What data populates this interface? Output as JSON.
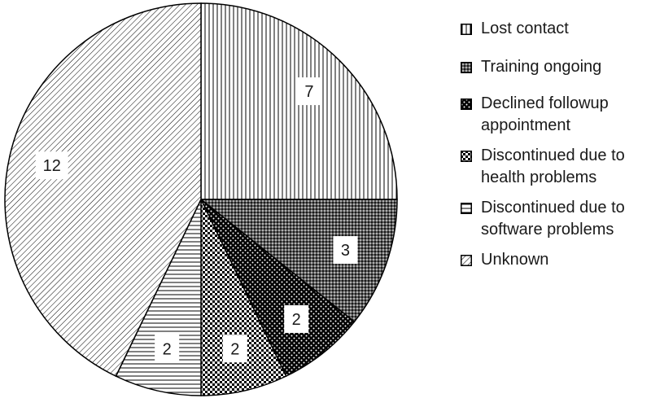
{
  "chart_data": {
    "type": "pie",
    "title": "",
    "slices": [
      {
        "label": "Lost contact",
        "value": 7,
        "pattern": "vertical-lines"
      },
      {
        "label": "Training ongoing",
        "value": 3,
        "pattern": "fine-dots"
      },
      {
        "label": "Declined followup appointment",
        "value": 2,
        "pattern": "dark-dots"
      },
      {
        "label": "Discontinued due to health problems",
        "value": 2,
        "pattern": "checker"
      },
      {
        "label": "Discontinued due to software problems",
        "value": 2,
        "pattern": "horizontal-lines"
      },
      {
        "label": "Unknown",
        "value": 12,
        "pattern": "diagonal-lines"
      }
    ],
    "start_angle": "12 o'clock",
    "direction": "clockwise",
    "legend_position": "right",
    "colors": {
      "stroke": "#000000",
      "background": "#ffffff",
      "text": "#1a1a1a"
    }
  }
}
